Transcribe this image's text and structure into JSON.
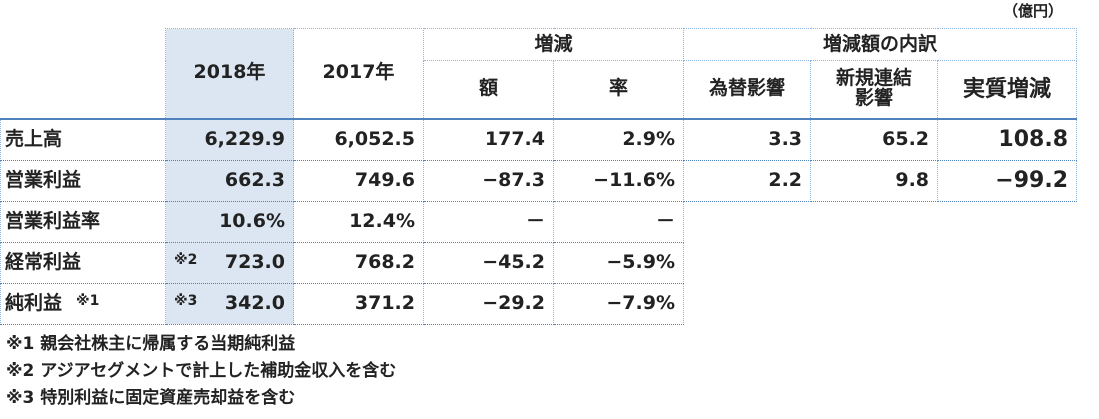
{
  "unit": "（億円）",
  "header": {
    "year_current": "2018年",
    "year_prior": "2017年",
    "change": "増減",
    "change_amount": "額",
    "change_rate": "率",
    "breakdown": "増減額の内訳",
    "fx": "為替影響",
    "new_consolidation": "新規連結\n影響",
    "real": "実質増減"
  },
  "table": {
    "rows": [
      {
        "label": "売上高",
        "current": "6,229.9",
        "prior": "6,052.5",
        "change_amount": "177.4",
        "change_rate": "2.9%",
        "fx": "3.3",
        "new_consolidation": "65.2",
        "real": "108.8"
      },
      {
        "label": "営業利益",
        "current": "662.3",
        "prior": "749.6",
        "change_amount": "−87.3",
        "change_rate": "−11.6%",
        "fx": "2.2",
        "new_consolidation": "9.8",
        "real": "−99.2"
      },
      {
        "label": "営業利益率",
        "current": "10.6%",
        "prior": "12.4%",
        "change_amount": "－",
        "change_rate": "－"
      },
      {
        "label": "経常利益",
        "current_note": "※2",
        "current": "723.0",
        "prior": "768.2",
        "change_amount": "−45.2",
        "change_rate": "−5.9%"
      },
      {
        "label": "純利益",
        "label_note": "※1",
        "current_note": "※3",
        "current": "342.0",
        "prior": "371.2",
        "change_amount": "−29.2",
        "change_rate": "−7.9%"
      }
    ]
  },
  "notes": [
    "※1 親会社株主に帰属する当期純利益",
    "※2 アジアセグメントで計上した補助金収入を含む",
    "※3 特別利益に固定資産売却益を含む"
  ]
}
